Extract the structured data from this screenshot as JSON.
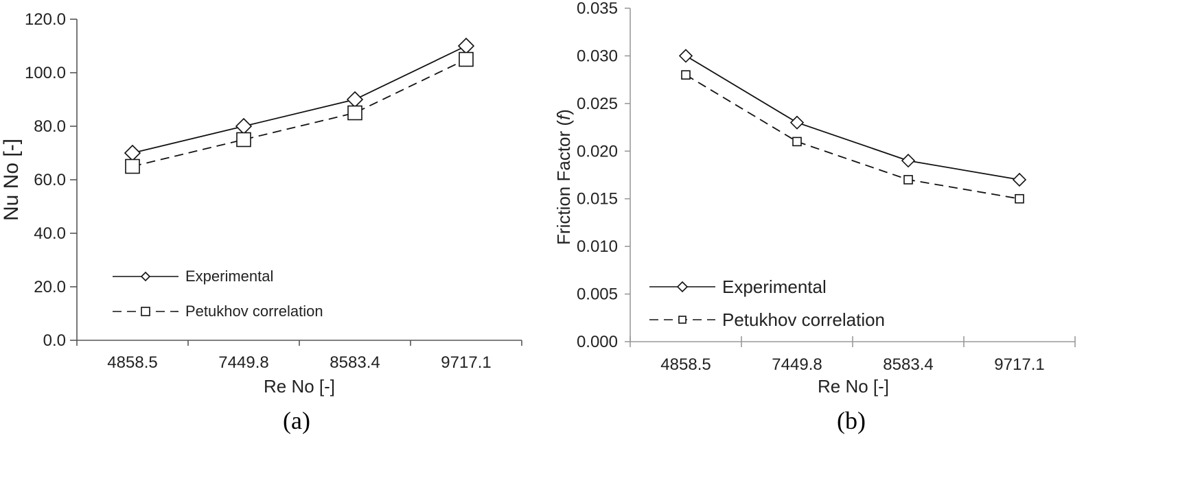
{
  "chart_data": [
    {
      "type": "line",
      "caption": "(a)",
      "categories": [
        "4858.5",
        "7449.8",
        "8583.4",
        "9717.1"
      ],
      "series": [
        {
          "name": "Experimental",
          "values": [
            70,
            80,
            90,
            110
          ],
          "marker": "diamond",
          "line": "solid"
        },
        {
          "name": "Petukhov correlation",
          "values": [
            65,
            75,
            85,
            105
          ],
          "marker": "square",
          "line": "dashed"
        }
      ],
      "xlabel": "Re No [-]",
      "ylabel": "Nu No [-]",
      "ylim": [
        0,
        120
      ],
      "yticks": [
        "0.0",
        "20.0",
        "40.0",
        "60.0",
        "80.0",
        "100.0",
        "120.0"
      ],
      "grid": false,
      "legend": "bottom-left"
    },
    {
      "type": "line",
      "caption": "(b)",
      "categories": [
        "4858.5",
        "7449.8",
        "8583.4",
        "9717.1"
      ],
      "series": [
        {
          "name": "Experimental",
          "values": [
            0.03,
            0.023,
            0.019,
            0.017
          ],
          "marker": "diamond",
          "line": "solid"
        },
        {
          "name": "Petukhov correlation",
          "values": [
            0.028,
            0.021,
            0.017,
            0.015
          ],
          "marker": "square",
          "line": "dashed"
        }
      ],
      "xlabel": "Re No [-]",
      "ylabel_prefix": "Friction Factor (",
      "ylabel_symbol": "f",
      "ylabel_suffix": ")",
      "ylim": [
        0,
        0.035
      ],
      "yticks": [
        "0.000",
        "0.005",
        "0.010",
        "0.015",
        "0.020",
        "0.025",
        "0.030",
        "0.035"
      ],
      "grid": false,
      "legend": "bottom-left"
    }
  ],
  "colors": {
    "line": "#111111",
    "axis_a": "#555555",
    "axis_b": "#999999"
  }
}
